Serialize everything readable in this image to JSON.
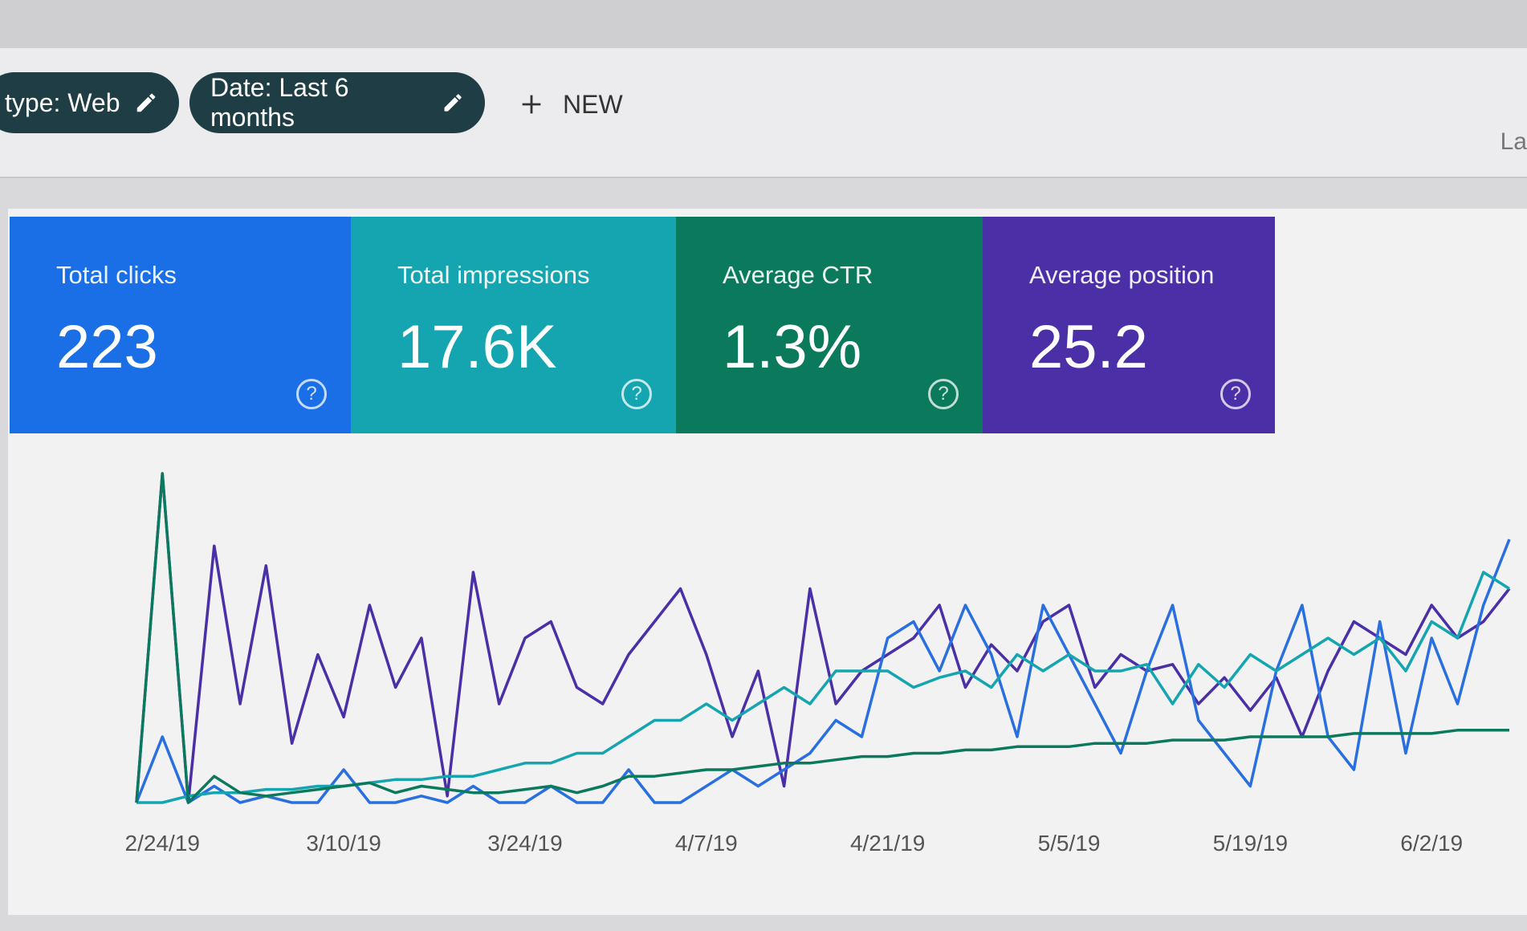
{
  "filters": {
    "search_type": "type: Web",
    "date": "Date: Last 6 months",
    "new_label": "NEW",
    "edge_text": "La"
  },
  "cards": [
    {
      "title": "Total clicks",
      "value": "223",
      "color": "#1a6fe6"
    },
    {
      "title": "Total impressions",
      "value": "17.6K",
      "color": "#14a5b0"
    },
    {
      "title": "Average CTR",
      "value": "1.3%",
      "color": "#0b7a5c"
    },
    {
      "title": "Average position",
      "value": "25.2",
      "color": "#4b2fa6"
    }
  ],
  "chart_data": {
    "type": "line",
    "x": [
      "2/22/19",
      "2/24/19",
      "2/26/19",
      "2/28/19",
      "3/2/19",
      "3/4/19",
      "3/6/19",
      "3/8/19",
      "3/10/19",
      "3/12/19",
      "3/14/19",
      "3/16/19",
      "3/18/19",
      "3/20/19",
      "3/22/19",
      "3/24/19",
      "3/26/19",
      "3/28/19",
      "3/30/19",
      "4/1/19",
      "4/3/19",
      "4/5/19",
      "4/7/19",
      "4/9/19",
      "4/11/19",
      "4/13/19",
      "4/15/19",
      "4/17/19",
      "4/19/19",
      "4/21/19",
      "4/23/19",
      "4/25/19",
      "4/27/19",
      "4/29/19",
      "5/1/19",
      "5/3/19",
      "5/5/19",
      "5/7/19",
      "5/9/19",
      "5/11/19",
      "5/13/19",
      "5/15/19",
      "5/17/19",
      "5/19/19",
      "5/21/19",
      "5/23/19",
      "5/25/19",
      "5/27/19",
      "5/29/19",
      "5/31/19",
      "6/2/19",
      "6/4/19",
      "6/6/19",
      "6/8/19"
    ],
    "tick_labels": [
      "2/24/19",
      "3/10/19",
      "3/24/19",
      "4/7/19",
      "4/21/19",
      "5/5/19",
      "5/19/19",
      "6/2/19"
    ],
    "grid": false,
    "series": [
      {
        "color": "#4a2fa6",
        "values": [
          0,
          100,
          0,
          78,
          30,
          72,
          18,
          45,
          26,
          60,
          35,
          50,
          2,
          70,
          30,
          50,
          55,
          35,
          30,
          45,
          55,
          65,
          45,
          20,
          40,
          5,
          65,
          30,
          40,
          45,
          50,
          60,
          35,
          48,
          40,
          55,
          60,
          35,
          45,
          40,
          42,
          30,
          38,
          28,
          38,
          20,
          40,
          55,
          50,
          45,
          60,
          50,
          55,
          65
        ]
      },
      {
        "color": "#2a6fe0",
        "values": [
          0,
          20,
          0,
          5,
          0,
          2,
          0,
          0,
          10,
          0,
          0,
          2,
          0,
          5,
          0,
          0,
          5,
          0,
          0,
          10,
          0,
          0,
          5,
          10,
          5,
          10,
          15,
          25,
          20,
          50,
          55,
          40,
          60,
          45,
          20,
          60,
          45,
          30,
          15,
          40,
          60,
          25,
          15,
          5,
          40,
          60,
          20,
          10,
          55,
          15,
          50,
          30,
          60,
          80
        ]
      },
      {
        "color": "#14a5b0",
        "values": [
          0,
          0,
          2,
          3,
          3,
          4,
          4,
          5,
          5,
          6,
          7,
          7,
          8,
          8,
          10,
          12,
          12,
          15,
          15,
          20,
          25,
          25,
          30,
          25,
          30,
          35,
          30,
          40,
          40,
          40,
          35,
          38,
          40,
          35,
          45,
          40,
          45,
          40,
          40,
          42,
          30,
          42,
          35,
          45,
          40,
          45,
          50,
          45,
          50,
          40,
          55,
          50,
          70,
          65
        ]
      },
      {
        "color": "#0b7a5c",
        "values": [
          0,
          100,
          0,
          8,
          3,
          2,
          3,
          4,
          5,
          6,
          3,
          5,
          4,
          3,
          3,
          4,
          5,
          3,
          5,
          8,
          8,
          9,
          10,
          10,
          11,
          12,
          12,
          13,
          14,
          14,
          15,
          15,
          16,
          16,
          17,
          17,
          17,
          18,
          18,
          18,
          19,
          19,
          19,
          20,
          20,
          20,
          20,
          21,
          21,
          21,
          21,
          22,
          22,
          22
        ]
      }
    ]
  }
}
